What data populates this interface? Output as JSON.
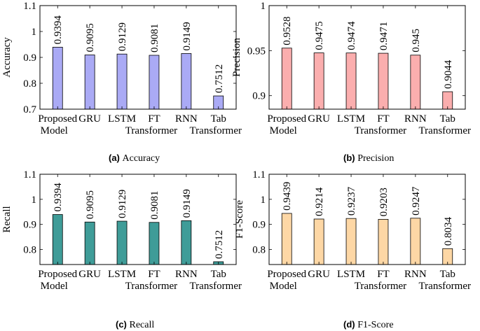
{
  "colors": {
    "accuracy": "#aaaaf5",
    "precision": "#fbaeae",
    "recall": "#3f9c98",
    "f1": "#fdd7a5",
    "stroke": "#000000"
  },
  "chart_data": [
    {
      "type": "bar",
      "ylabel": "Accuracy",
      "caption_label": "(a)",
      "caption_text": "Accuracy",
      "categories": [
        [
          "Proposed",
          "Model"
        ],
        [
          "GRU"
        ],
        [
          "LSTM"
        ],
        [
          "FT",
          "Transformer"
        ],
        [
          "RNN"
        ],
        [
          "Tab",
          "Transformer"
        ]
      ],
      "values": [
        0.9394,
        0.9095,
        0.9129,
        0.9081,
        0.9149,
        0.7512
      ],
      "value_labels": [
        "0.9394",
        "0.9095",
        "0.9129",
        "0.9081",
        "0.9149",
        "0.7512"
      ],
      "ylim": [
        0.7,
        1.1
      ],
      "yticks": [
        0.7,
        0.8,
        0.9,
        1,
        1.1
      ],
      "ytick_labels": [
        "0.7",
        "0.8",
        "0.9",
        "1",
        "1.1"
      ]
    },
    {
      "type": "bar",
      "ylabel": "Precision",
      "caption_label": "(b)",
      "caption_text": "Precision",
      "categories": [
        [
          "Proposed",
          "Model"
        ],
        [
          "GRU"
        ],
        [
          "LSTM"
        ],
        [
          "FT",
          "Transformer"
        ],
        [
          "RNN"
        ],
        [
          "Tab",
          "Transformer"
        ]
      ],
      "values": [
        0.9528,
        0.9475,
        0.9474,
        0.9471,
        0.945,
        0.9044
      ],
      "value_labels": [
        "0.9528",
        "0.9475",
        "0.9474",
        "0.9471",
        "0.945",
        "0.9044"
      ],
      "ylim": [
        0.885,
        1
      ],
      "yticks": [
        0.9,
        0.95,
        1
      ],
      "ytick_labels": [
        "0.9",
        "0.95",
        "1"
      ]
    },
    {
      "type": "bar",
      "ylabel": "Recall",
      "caption_label": "(c)",
      "caption_text": "Recall",
      "categories": [
        [
          "Proposed",
          "Model"
        ],
        [
          "GRU"
        ],
        [
          "LSTM"
        ],
        [
          "FT",
          "Transformer"
        ],
        [
          "RNN"
        ],
        [
          "Tab",
          "Transformer"
        ]
      ],
      "values": [
        0.9394,
        0.9095,
        0.9129,
        0.9081,
        0.9149,
        0.7512
      ],
      "value_labels": [
        "0.9394",
        "0.9095",
        "0.9129",
        "0.9081",
        "0.9149",
        "0.7512"
      ],
      "ylim": [
        0.74,
        1.1
      ],
      "yticks": [
        0.8,
        0.9,
        1,
        1.1
      ],
      "ytick_labels": [
        "0.8",
        "0.9",
        "1",
        "1.1"
      ]
    },
    {
      "type": "bar",
      "ylabel": "F1-Score",
      "caption_label": "(d)",
      "caption_text": "F1-Score",
      "categories": [
        [
          "Proposed",
          "Model"
        ],
        [
          "GRU"
        ],
        [
          "LSTM"
        ],
        [
          "FT",
          "Transformer"
        ],
        [
          "RNN"
        ],
        [
          "Tab",
          "Transformer"
        ]
      ],
      "values": [
        0.9439,
        0.9214,
        0.9237,
        0.9203,
        0.9247,
        0.8034
      ],
      "value_labels": [
        "0.9439",
        "0.9214",
        "0.9237",
        "0.9203",
        "0.9247",
        "0.8034"
      ],
      "ylim": [
        0.74,
        1.1
      ],
      "yticks": [
        0.8,
        0.9,
        1,
        1.1
      ],
      "ytick_labels": [
        "0.8",
        "0.9",
        "1",
        "1.1"
      ]
    }
  ]
}
